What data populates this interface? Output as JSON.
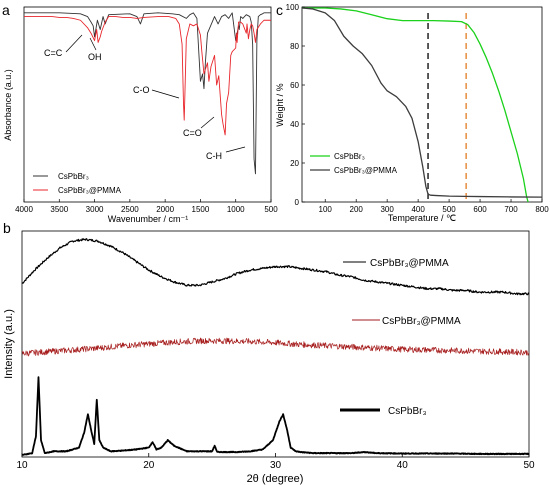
{
  "panels": {
    "a": "a",
    "b": "b",
    "c": "c"
  },
  "chart_data": [
    {
      "panel": "a",
      "type": "line",
      "xlabel": "Wavenumber / cm⁻¹",
      "ylabel": "Absorbance (a.u.)",
      "xlim": [
        4000,
        500
      ],
      "x_reversed": true,
      "ylim": [
        0,
        1
      ],
      "x_ticks": [
        "4000",
        "3500",
        "3000",
        "2500",
        "2000",
        "1500",
        "1000",
        "500"
      ],
      "legend": {
        "placement": "bottom-left",
        "entries": [
          "CsPbBr₃",
          "CsPbBr₃@PMMA"
        ]
      },
      "annotations": [
        {
          "text": "C=C",
          "x": 3050
        },
        {
          "text": "OH",
          "x": 2950
        },
        {
          "text": "C-O",
          "x": 1730
        },
        {
          "text": "C=O",
          "x": 1150
        },
        {
          "text": "C-H",
          "x": 750
        }
      ],
      "series": [
        {
          "name": "CsPbBr₃",
          "color": "#333333",
          "x": [
            4000,
            3500,
            3200,
            3100,
            3050,
            3020,
            3000,
            2960,
            2920,
            2880,
            2850,
            2800,
            2500,
            2400,
            2350,
            2300,
            2100,
            1900,
            1800,
            1700,
            1650,
            1600,
            1550,
            1500,
            1470,
            1450,
            1430,
            1400,
            1300,
            1250,
            1200,
            1150,
            1100,
            1050,
            1000,
            960,
            950,
            930,
            900,
            850,
            800,
            780,
            760,
            740,
            720,
            700,
            680,
            650,
            620,
            600,
            550,
            500
          ],
          "y": [
            0.99,
            0.99,
            0.985,
            0.97,
            0.94,
            0.92,
            0.86,
            0.95,
            0.9,
            0.97,
            0.93,
            0.98,
            0.985,
            0.97,
            0.93,
            0.985,
            0.99,
            0.985,
            0.98,
            0.96,
            0.98,
            0.99,
            0.96,
            0.62,
            0.66,
            0.58,
            0.72,
            0.88,
            0.97,
            0.93,
            0.97,
            0.98,
            0.96,
            0.99,
            0.84,
            0.92,
            0.9,
            0.97,
            0.96,
            0.98,
            0.97,
            0.94,
            0.82,
            0.2,
            0.12,
            0.84,
            0.97,
            0.98,
            0.985,
            0.99,
            0.99,
            0.99
          ]
        },
        {
          "name": "CsPbBr₃@PMMA",
          "color": "#e8262b",
          "x": [
            4000,
            3600,
            3500,
            3400,
            3300,
            3200,
            3100,
            3050,
            3000,
            2970,
            2950,
            2920,
            2900,
            2850,
            2800,
            2700,
            2600,
            2500,
            2400,
            2300,
            2100,
            1950,
            1850,
            1800,
            1760,
            1740,
            1730,
            1720,
            1700,
            1650,
            1600,
            1550,
            1500,
            1480,
            1450,
            1400,
            1380,
            1350,
            1300,
            1270,
            1240,
            1200,
            1180,
            1150,
            1130,
            1100,
            1070,
            1050,
            1000,
            990,
            980,
            960,
            930,
            900,
            850,
            840,
            820,
            800,
            780,
            760,
            740,
            720,
            700,
            650,
            600,
            550,
            500
          ],
          "y": [
            0.97,
            0.97,
            0.965,
            0.965,
            0.96,
            0.95,
            0.91,
            0.88,
            0.84,
            0.9,
            0.83,
            0.86,
            0.89,
            0.94,
            0.97,
            0.97,
            0.965,
            0.965,
            0.96,
            0.965,
            0.97,
            0.97,
            0.96,
            0.93,
            0.82,
            0.5,
            0.41,
            0.55,
            0.85,
            0.93,
            0.92,
            0.93,
            0.87,
            0.78,
            0.66,
            0.72,
            0.62,
            0.7,
            0.76,
            0.6,
            0.65,
            0.44,
            0.39,
            0.33,
            0.5,
            0.56,
            0.76,
            0.78,
            0.8,
            0.88,
            0.83,
            0.94,
            0.94,
            0.93,
            0.88,
            0.93,
            0.85,
            0.9,
            0.93,
            0.92,
            0.88,
            0.83,
            0.9,
            0.93,
            0.95,
            0.95,
            0.95
          ]
        }
      ]
    },
    {
      "panel": "b",
      "type": "line",
      "xlabel": "2θ (degree)",
      "ylabel": "Intensity (a.u.)",
      "xlim": [
        10,
        50
      ],
      "x_ticks": [
        "10",
        "20",
        "30",
        "40",
        "50"
      ],
      "series": [
        {
          "name": "CsPbBr₃@PMMA",
          "color": "#000000",
          "x": [
            10,
            11,
            12,
            13,
            14,
            15,
            16,
            17,
            18,
            19,
            20,
            21,
            22,
            23,
            24,
            25,
            26,
            27,
            28,
            29,
            30,
            31,
            32,
            33,
            34,
            35,
            36,
            37,
            38,
            39,
            40,
            41,
            42,
            43,
            44,
            45,
            46,
            47,
            48,
            49,
            50
          ],
          "y": [
            0.62,
            0.7,
            0.77,
            0.83,
            0.87,
            0.88,
            0.87,
            0.84,
            0.8,
            0.75,
            0.7,
            0.66,
            0.63,
            0.61,
            0.61,
            0.63,
            0.65,
            0.68,
            0.7,
            0.71,
            0.72,
            0.72,
            0.71,
            0.7,
            0.69,
            0.67,
            0.66,
            0.64,
            0.63,
            0.62,
            0.61,
            0.6,
            0.59,
            0.59,
            0.58,
            0.58,
            0.57,
            0.57,
            0.57,
            0.56,
            0.56
          ]
        },
        {
          "name": "CsPbBr₃@PMMA",
          "color": "#a61c1c",
          "x": [
            10,
            12,
            14,
            16,
            18,
            20,
            22,
            24,
            26,
            28,
            30,
            32,
            34,
            36,
            38,
            40,
            42,
            44,
            46,
            48,
            50
          ],
          "y": [
            0.28,
            0.31,
            0.34,
            0.37,
            0.41,
            0.44,
            0.47,
            0.49,
            0.49,
            0.48,
            0.46,
            0.43,
            0.41,
            0.39,
            0.37,
            0.35,
            0.34,
            0.33,
            0.32,
            0.31,
            0.3
          ]
        },
        {
          "name": "CsPbBr₃",
          "color": "#000000",
          "x": [
            10,
            10.8,
            11.1,
            11.3,
            11.5,
            11.8,
            12.5,
            13.5,
            14.5,
            14.9,
            15.2,
            15.5,
            15.7,
            15.9,
            16.1,
            16.4,
            17,
            18,
            19,
            20,
            20.3,
            20.6,
            21,
            21.5,
            22,
            23,
            24,
            25,
            25.2,
            25.4,
            26,
            27,
            28,
            29,
            29.8,
            30.3,
            30.6,
            30.9,
            31.2,
            31.6,
            32,
            33,
            34,
            35,
            36,
            37,
            38,
            40,
            42,
            44,
            46,
            48,
            50
          ],
          "y": [
            0.0,
            0.005,
            0.05,
            0.21,
            0.04,
            0.005,
            0.01,
            0.01,
            0.02,
            0.06,
            0.11,
            0.06,
            0.03,
            0.15,
            0.04,
            0.02,
            0.01,
            0.012,
            0.015,
            0.02,
            0.035,
            0.015,
            0.02,
            0.04,
            0.025,
            0.01,
            0.01,
            0.01,
            0.025,
            0.008,
            0.008,
            0.008,
            0.01,
            0.015,
            0.04,
            0.09,
            0.11,
            0.07,
            0.02,
            0.01,
            0.008,
            0.005,
            0.005,
            0.005,
            0.005,
            0.008,
            0.005,
            0.004,
            0.004,
            0.004,
            0.003,
            0.003,
            0.003
          ]
        }
      ]
    },
    {
      "panel": "c",
      "type": "line",
      "xlabel": "Temperature / ℃",
      "ylabel": "Weight / %",
      "xlim": [
        25,
        800
      ],
      "ylim": [
        0,
        100
      ],
      "x_ticks": [
        "100",
        "200",
        "300",
        "400",
        "500",
        "600",
        "700",
        "800"
      ],
      "y_ticks": [
        "0",
        "20",
        "40",
        "60",
        "80",
        "100"
      ],
      "legend": {
        "placement": "bottom-left",
        "entries": [
          "CsPbBr₃",
          "CsPbBr₃@PMMA"
        ]
      },
      "vlines": [
        {
          "x": 432,
          "color": "#000000",
          "style": "dashed"
        },
        {
          "x": 555,
          "color": "#e37b20",
          "style": "dashed"
        }
      ],
      "series": [
        {
          "name": "CsPbBr₃",
          "color": "#1bd11b",
          "x": [
            25,
            100,
            150,
            200,
            250,
            300,
            350,
            400,
            450,
            500,
            540,
            560,
            580,
            600,
            620,
            640,
            660,
            680,
            700,
            720,
            740,
            750,
            755
          ],
          "y": [
            99.5,
            99.5,
            99,
            98,
            96,
            94,
            93,
            93,
            93,
            92.8,
            92.5,
            91,
            87,
            81,
            74,
            66,
            57,
            47,
            36,
            25,
            12,
            3,
            0
          ]
        },
        {
          "name": "CsPbBr₃@PMMA",
          "color": "#3d3d3d",
          "x": [
            25,
            60,
            100,
            130,
            160,
            190,
            220,
            250,
            280,
            300,
            330,
            360,
            380,
            400,
            415,
            425,
            432,
            440,
            460,
            500,
            550,
            600,
            700,
            800
          ],
          "y": [
            99.5,
            99,
            97,
            93,
            85,
            80,
            76,
            70,
            61,
            57,
            54,
            49,
            43,
            31,
            18,
            8,
            4,
            3.5,
            3.3,
            3,
            2.9,
            2.8,
            2.6,
            2.5
          ]
        }
      ]
    }
  ]
}
